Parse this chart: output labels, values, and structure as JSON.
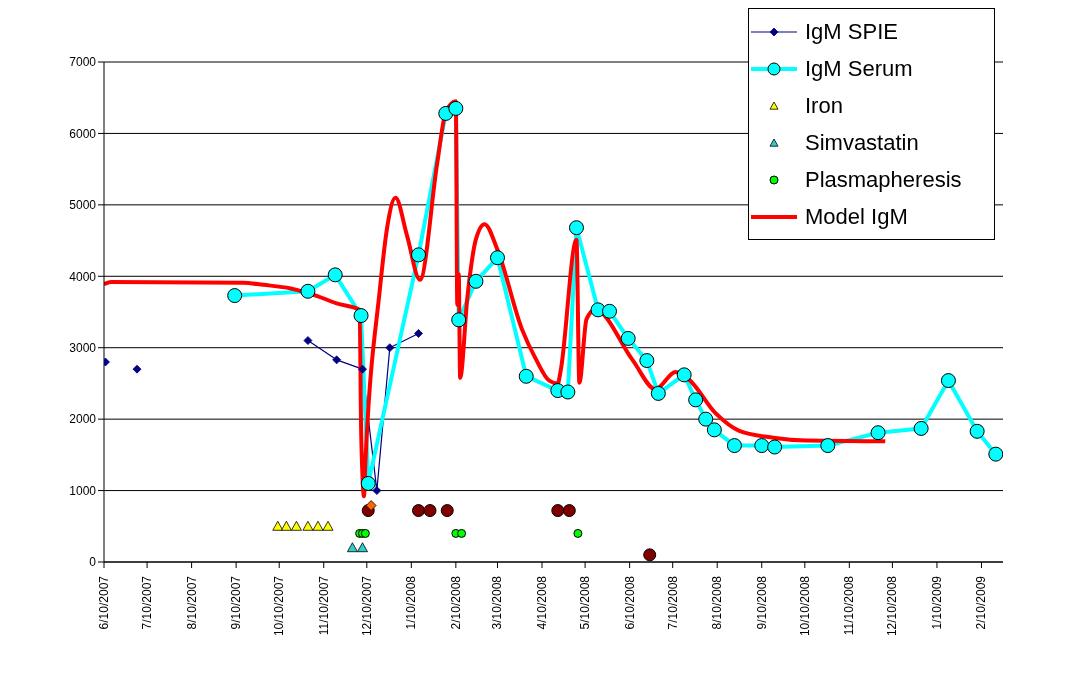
{
  "chart_data": {
    "type": "line",
    "xlim": [
      "2007-06-10",
      "2009-02-25"
    ],
    "xticks": [
      {
        "value": "2007-06-10",
        "label": "6/10/2007"
      },
      {
        "value": "2007-07-10",
        "label": "7/10/2007"
      },
      {
        "value": "2007-08-10",
        "label": "8/10/2007"
      },
      {
        "value": "2007-09-10",
        "label": "9/10/2007"
      },
      {
        "value": "2007-10-10",
        "label": "10/10/2007"
      },
      {
        "value": "2007-11-10",
        "label": "11/10/2007"
      },
      {
        "value": "2007-12-10",
        "label": "12/10/2007"
      },
      {
        "value": "2008-01-10",
        "label": "1/10/2008"
      },
      {
        "value": "2008-02-10",
        "label": "2/10/2008"
      },
      {
        "value": "2008-03-10",
        "label": "3/10/2008"
      },
      {
        "value": "2008-04-10",
        "label": "4/10/2008"
      },
      {
        "value": "2008-05-10",
        "label": "5/10/2008"
      },
      {
        "value": "2008-06-10",
        "label": "6/10/2008"
      },
      {
        "value": "2008-07-10",
        "label": "7/10/2008"
      },
      {
        "value": "2008-08-10",
        "label": "8/10/2008"
      },
      {
        "value": "2008-09-10",
        "label": "9/10/2008"
      },
      {
        "value": "2008-10-10",
        "label": "10/10/2008"
      },
      {
        "value": "2008-11-10",
        "label": "11/10/2008"
      },
      {
        "value": "2008-12-10",
        "label": "12/10/2008"
      },
      {
        "value": "2009-01-10",
        "label": "1/10/2009"
      },
      {
        "value": "2009-02-10",
        "label": "2/10/2009"
      }
    ],
    "ylim": [
      0,
      7000
    ],
    "yticks": [
      0,
      1000,
      2000,
      3000,
      4000,
      5000,
      6000,
      7000
    ],
    "grid": "y",
    "legend": "top right",
    "line_style": "solid",
    "series": [
      {
        "name": "IgM SPIE",
        "marker": "diamond",
        "color": "#000080",
        "x": [
          "2007-06-11",
          "2007-06-22",
          "2007-07-03",
          "2007-09-01",
          "2007-10-30",
          "2007-11-19",
          "2007-12-07",
          "2007-12-17",
          "2007-12-26",
          "2008-01-15"
        ],
        "values": [
          2800,
          null,
          2700,
          null,
          3100,
          2830,
          2700,
          1000,
          3000,
          3200
        ]
      },
      {
        "name": "IgM Serum",
        "marker": "circle",
        "color": "#00ffff",
        "x": [
          "2007-09-09",
          "2007-10-30",
          "2007-11-18",
          "2007-12-06",
          "2007-12-11",
          "2008-01-15",
          "2008-02-03",
          "2008-02-10",
          "2008-02-12",
          "2008-02-24",
          "2008-03-10",
          "2008-03-30",
          "2008-04-21",
          "2008-04-28",
          "2008-05-04",
          "2008-05-19",
          "2008-05-27",
          "2008-06-09",
          "2008-06-22",
          "2008-06-30",
          "2008-07-18",
          "2008-07-26",
          "2008-08-02",
          "2008-08-08",
          "2008-08-22",
          "2008-09-10",
          "2008-09-19",
          "2008-10-26",
          "2008-11-30",
          "2008-12-30",
          "2009-01-18",
          "2009-02-07",
          "2009-02-20"
        ],
        "values": [
          3730,
          3790,
          4020,
          3450,
          1100,
          4300,
          6280,
          6350,
          3390,
          3930,
          4260,
          2600,
          2400,
          2380,
          4680,
          3530,
          3510,
          3130,
          2820,
          2360,
          2620,
          2270,
          2000,
          1850,
          1630,
          1630,
          1610,
          1630,
          1810,
          1870,
          2540,
          1830,
          1510
        ]
      },
      {
        "name": "Iron",
        "type": "scatter",
        "marker": "triangle",
        "color": "#ffff00",
        "x": [
          "2007-10-09",
          "2007-10-15",
          "2007-10-22",
          "2007-10-30",
          "2007-11-06",
          "2007-11-13"
        ],
        "values": [
          500,
          500,
          500,
          500,
          500,
          500
        ]
      },
      {
        "name": "Simvastatin",
        "type": "scatter",
        "marker": "triangle",
        "color": "#33cccc",
        "x": [
          "2007-11-30",
          "2007-12-07"
        ],
        "values": [
          200,
          200
        ]
      },
      {
        "name": "Plasmapheresis",
        "type": "scatter",
        "marker": "circle",
        "color": "#00ff00",
        "x": [
          "2007-12-05",
          "2007-12-07",
          "2007-12-09",
          "2008-02-10",
          "2008-02-14",
          "2008-05-05"
        ],
        "values": [
          400,
          400,
          400,
          400,
          400,
          400
        ]
      },
      {
        "type": "scatter",
        "marker": "circle",
        "color": "#800000",
        "x": [
          "2007-12-11",
          "2008-01-15",
          "2008-01-23",
          "2008-02-04",
          "2008-04-21",
          "2008-04-29",
          "2008-06-24"
        ],
        "values": [
          720,
          720,
          720,
          720,
          720,
          720,
          100
        ]
      },
      {
        "type": "scatter",
        "marker": "diamond",
        "color": "#ff6600",
        "x": [
          "2007-12-13"
        ],
        "values": [
          790
        ]
      },
      {
        "name": "Model IgM",
        "marker": "none",
        "color": "#ff0000",
        "x": [
          "2007-06-10",
          "2007-06-15",
          "2007-09-15",
          "2007-09-29",
          "2007-10-18",
          "2007-11-06",
          "2007-11-19",
          "2007-12-05",
          "2007-12-06",
          "2007-12-07",
          "2007-12-08",
          "2007-12-09",
          "2007-12-19",
          "2007-12-24",
          "2007-12-30",
          "2008-01-07",
          "2008-01-16",
          "2008-01-28",
          "2008-02-03",
          "2008-02-10",
          "2008-02-11",
          "2008-02-12",
          "2008-02-13",
          "2008-02-18",
          "2008-02-24",
          "2008-03-01",
          "2008-03-10",
          "2008-03-27",
          "2008-04-06",
          "2008-04-15",
          "2008-04-21",
          "2008-04-23",
          "2008-05-04",
          "2008-05-06",
          "2008-05-11",
          "2008-05-17",
          "2008-06-12",
          "2008-06-28",
          "2008-07-12",
          "2008-07-21",
          "2008-08-09",
          "2008-08-25",
          "2008-09-18",
          "2008-10-11",
          "2008-12-05"
        ],
        "values": [
          3890,
          3920,
          3910,
          3880,
          3830,
          3720,
          3620,
          3530,
          1900,
          1200,
          920,
          1380,
          3800,
          4660,
          5100,
          4570,
          3950,
          5580,
          6300,
          6450,
          3600,
          4030,
          2580,
          3700,
          4520,
          4730,
          4370,
          3260,
          2830,
          2540,
          2500,
          2680,
          4510,
          2510,
          3400,
          3530,
          2830,
          2420,
          2660,
          2560,
          2080,
          1840,
          1740,
          1700,
          1690
        ]
      }
    ]
  }
}
